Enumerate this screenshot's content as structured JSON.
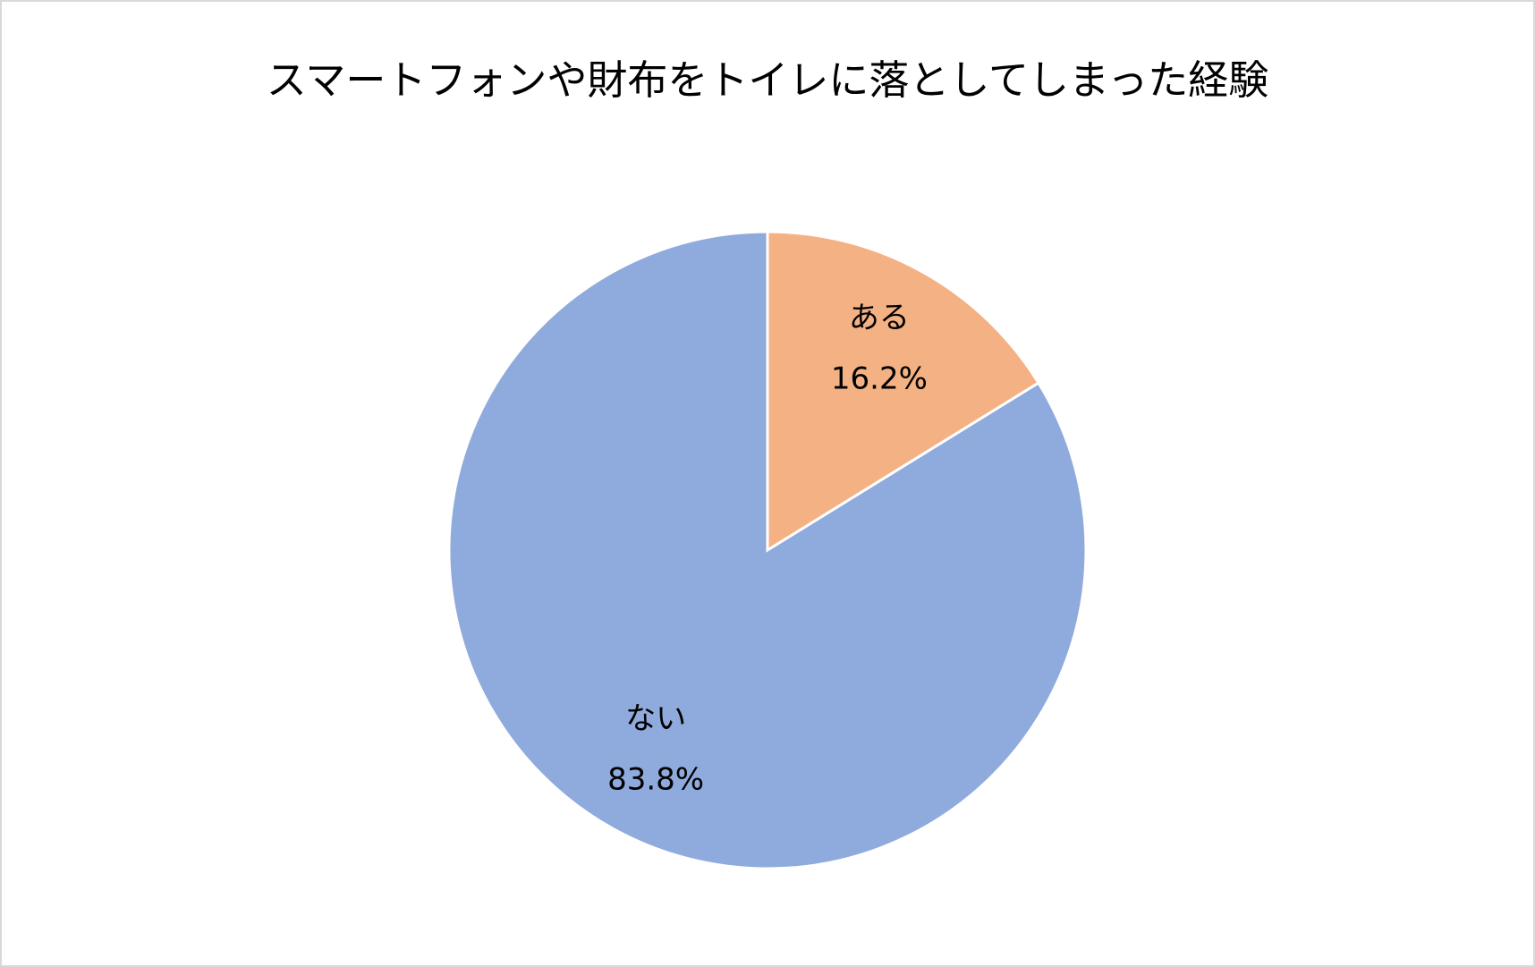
{
  "chart_data": {
    "type": "pie",
    "title": "スマートフォンや財布をトイレに落としてしまった経験",
    "categories": [
      "ある",
      "ない"
    ],
    "values": [
      16.2,
      83.8
    ],
    "value_labels": [
      "16.2%",
      "83.8%"
    ],
    "colors": [
      "#f4b183",
      "#8faadc"
    ]
  }
}
